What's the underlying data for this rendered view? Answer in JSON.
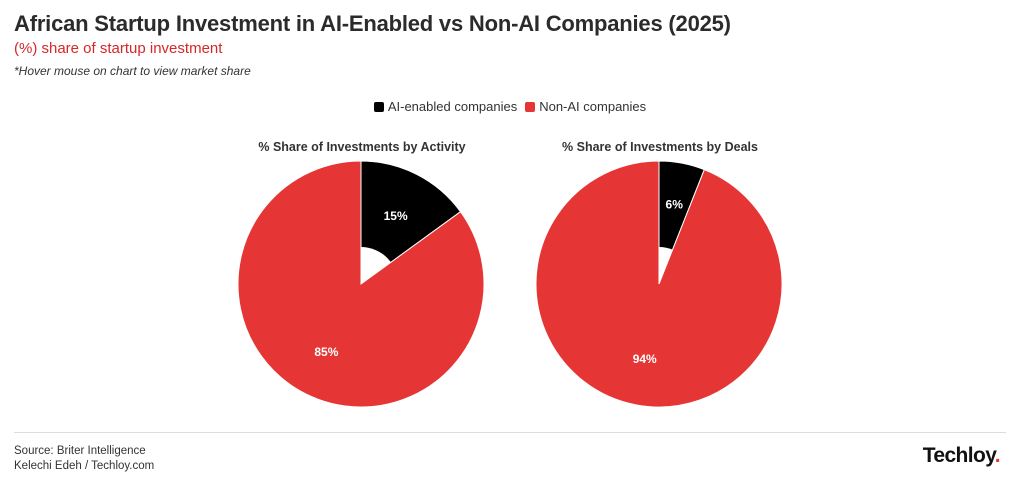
{
  "header": {
    "title": "African Startup Investment in AI-Enabled vs Non-AI Companies (2025)",
    "subtitle": "(%) share of startup investment",
    "note": "*Hover mouse on chart to view market share"
  },
  "colors": {
    "ai": "#000000",
    "non_ai": "#e53535",
    "label_on_dark": "#ffffff"
  },
  "chart_data": [
    {
      "type": "pie",
      "title": "% Share of Investments by Activity",
      "categories": [
        "AI-enabled companies",
        "Non-AI companies"
      ],
      "values": [
        15,
        85
      ],
      "labels": [
        "15%",
        "85%"
      ],
      "legend": "top-center"
    },
    {
      "type": "pie",
      "title": "% Share of Investments by Deals",
      "categories": [
        "AI-enabled companies",
        "Non-AI companies"
      ],
      "values": [
        6,
        94
      ],
      "labels": [
        "6%",
        "94%"
      ],
      "legend": "top-center"
    }
  ],
  "legend": {
    "ai_label": "AI-enabled companies",
    "non_ai_label": "Non-AI companies"
  },
  "footer": {
    "source": "Source: Briter Intelligence",
    "author": "Kelechi Edeh / Techloy.com",
    "logo_text": "Techloy",
    "logo_dot": "."
  }
}
